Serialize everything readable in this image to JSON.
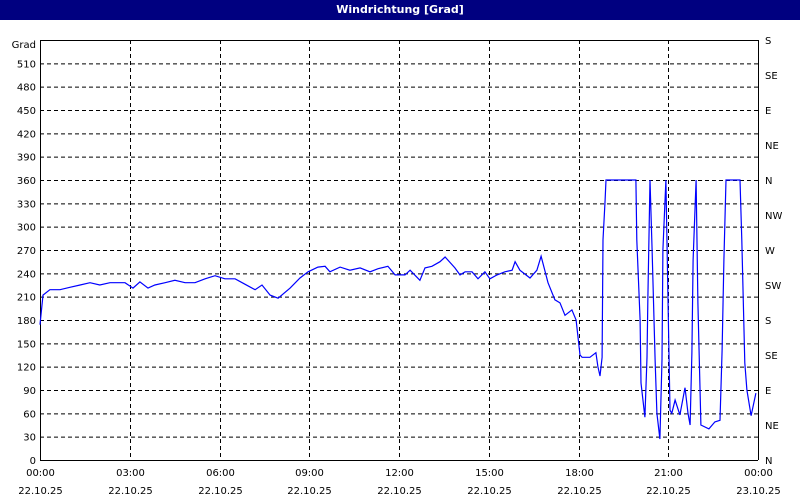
{
  "title": "Windrichtung [Grad]",
  "chart_data": {
    "type": "line",
    "title": "Windrichtung [Grad]",
    "ylabel": "Grad",
    "xlabel": "",
    "ylim": [
      0,
      540
    ],
    "xlim_hours": [
      0,
      24
    ],
    "grid": true,
    "line_color": "#0000ff",
    "y_ticks": [
      0,
      30,
      60,
      90,
      120,
      150,
      180,
      210,
      240,
      270,
      300,
      330,
      360,
      390,
      420,
      450,
      480,
      510
    ],
    "right_ticks": [
      {
        "value": 0,
        "label": "N"
      },
      {
        "value": 45,
        "label": "NE"
      },
      {
        "value": 90,
        "label": "E"
      },
      {
        "value": 135,
        "label": "SE"
      },
      {
        "value": 180,
        "label": "S"
      },
      {
        "value": 225,
        "label": "SW"
      },
      {
        "value": 270,
        "label": "W"
      },
      {
        "value": 315,
        "label": "NW"
      },
      {
        "value": 360,
        "label": "N"
      },
      {
        "value": 405,
        "label": "NE"
      },
      {
        "value": 450,
        "label": "E"
      },
      {
        "value": 495,
        "label": "SE"
      },
      {
        "value": 540,
        "label": "S"
      }
    ],
    "x_ticks": [
      {
        "hour": 0,
        "time": "00:00",
        "date": "22.10.25"
      },
      {
        "hour": 3,
        "time": "03:00",
        "date": "22.10.25"
      },
      {
        "hour": 6,
        "time": "06:00",
        "date": "22.10.25"
      },
      {
        "hour": 9,
        "time": "09:00",
        "date": "22.10.25"
      },
      {
        "hour": 12,
        "time": "12:00",
        "date": "22.10.25"
      },
      {
        "hour": 15,
        "time": "15:00",
        "date": "22.10.25"
      },
      {
        "hour": 18,
        "time": "18:00",
        "date": "22.10.25"
      },
      {
        "hour": 21,
        "time": "21:00",
        "date": "22.10.25"
      },
      {
        "hour": 24,
        "time": "00:00",
        "date": "23.10.25"
      }
    ],
    "series": [
      {
        "x_hours": [
          0,
          0.1,
          0.33,
          0.67,
          1.0,
          1.34,
          1.67,
          2.0,
          2.34,
          2.84,
          3.11,
          3.34,
          3.61,
          3.84,
          4.18,
          4.51,
          4.85,
          5.18,
          5.52,
          5.85,
          6.18,
          6.52,
          6.85,
          7.19,
          7.42,
          7.69,
          7.96,
          8.36,
          8.69,
          8.96,
          9.29,
          9.53,
          9.69,
          10.03,
          10.36,
          10.7,
          11.03,
          11.3,
          11.63,
          11.87,
          12.2,
          12.37,
          12.7,
          12.87,
          13.1,
          13.37,
          13.54,
          13.87,
          14.04,
          14.21,
          14.44,
          14.64,
          14.87,
          15.04,
          15.28,
          15.54,
          15.78,
          15.88,
          16.04,
          16.38,
          16.61,
          16.75,
          16.98,
          17.21,
          17.38,
          17.55,
          17.78,
          17.92,
          18.05,
          18.12,
          18.38,
          18.58,
          18.65,
          18.72,
          18.79,
          18.82,
          18.89,
          18.92,
          19.92,
          19.95,
          20.06,
          20.09,
          20.22,
          20.29,
          20.32,
          20.39,
          20.46,
          20.56,
          20.62,
          20.72,
          20.79,
          20.82,
          20.92,
          20.99,
          21.06,
          21.12,
          21.23,
          21.39,
          21.56,
          21.66,
          21.73,
          21.79,
          21.83,
          21.93,
          21.99,
          22.09,
          22.36,
          22.56,
          22.73,
          22.8,
          22.86,
          22.93,
          23.4,
          23.46,
          23.56,
          23.63,
          23.77,
          23.93
        ],
        "values": [
          174,
          212,
          219,
          219,
          222,
          225,
          228,
          225,
          228,
          228,
          221,
          229,
          221,
          225,
          228,
          231,
          228,
          228,
          233,
          237,
          233,
          233,
          226,
          219,
          225,
          212,
          208,
          221,
          234,
          242,
          248,
          249,
          242,
          248,
          244,
          247,
          242,
          246,
          249,
          238,
          238,
          244,
          231,
          247,
          249,
          255,
          261,
          247,
          238,
          242,
          242,
          233,
          242,
          233,
          238,
          242,
          244,
          255,
          244,
          234,
          244,
          262,
          228,
          206,
          202,
          186,
          193,
          180,
          135,
          132,
          132,
          138,
          120,
          108,
          132,
          283,
          334,
          360,
          360,
          283,
          180,
          99,
          55,
          132,
          210,
          360,
          270,
          129,
          60,
          27,
          129,
          270,
          360,
          206,
          64,
          60,
          77,
          58,
          93,
          60,
          45,
          138,
          257,
          360,
          202,
          45,
          40,
          49,
          51,
          141,
          257,
          360,
          360,
          283,
          125,
          90,
          57,
          86
        ]
      }
    ]
  }
}
